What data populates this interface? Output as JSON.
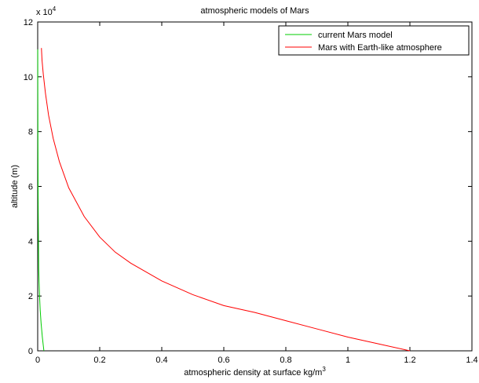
{
  "chart_data": {
    "type": "line",
    "title": "atmospheric models of Mars",
    "xlabel": "atmospheric density at surface kg/m",
    "xlabel_sup": "3",
    "ylabel": "altitude (m)",
    "y_exponent_label": "x 10",
    "y_exponent_sup": "4",
    "xlim": [
      0,
      1.4
    ],
    "ylim": [
      0,
      12
    ],
    "y_scale_note_value": 10000,
    "xticks": [
      "0",
      "0.2",
      "0.4",
      "0.6",
      "0.8",
      "1",
      "1.2",
      "1.4"
    ],
    "yticks": [
      "0",
      "2",
      "4",
      "6",
      "8",
      "10",
      "12"
    ],
    "grid": false,
    "legend_position": "top-right",
    "series": [
      {
        "name": "current Mars model",
        "color": "#00cc00",
        "x": [
          0.02,
          0.015,
          0.011,
          0.008,
          0.006,
          0.0045,
          0.0033,
          0.0025,
          0.0018,
          0.0013,
          0.001,
          0.0007,
          0.0005,
          0.0003,
          0.0002
        ],
        "y": [
          0,
          0.5,
          1,
          1.5,
          2,
          2.5,
          3,
          4,
          5,
          6,
          7,
          8,
          9,
          10,
          11
        ]
      },
      {
        "name": "Mars with Earth-like atmosphere",
        "color": "#ff0000",
        "x": [
          1.2,
          1.1,
          1.0,
          0.9,
          0.8,
          0.7,
          0.6,
          0.5,
          0.4,
          0.3,
          0.25,
          0.2,
          0.15,
          0.1,
          0.07,
          0.05,
          0.035,
          0.025,
          0.018,
          0.014,
          0.012
        ],
        "y": [
          0,
          0.25,
          0.5,
          0.8,
          1.1,
          1.4,
          1.65,
          2.05,
          2.55,
          3.2,
          3.6,
          4.15,
          4.9,
          5.95,
          6.9,
          7.75,
          8.6,
          9.4,
          10.1,
          10.6,
          11.05
        ]
      }
    ]
  }
}
